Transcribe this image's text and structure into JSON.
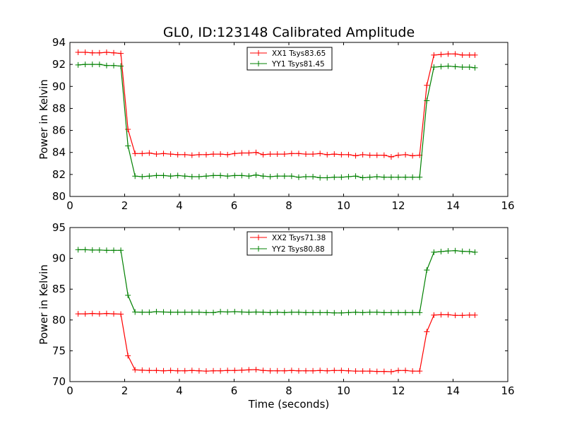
{
  "title": "GL0, ID:123148 Calibrated Amplitude",
  "xlabel": "Time (seconds)",
  "chart_data": [
    {
      "type": "line",
      "ylabel": "Power in Kelvin",
      "xlim": [
        0,
        16
      ],
      "ylim": [
        80,
        94
      ],
      "xticks": [
        "0",
        "2",
        "4",
        "6",
        "8",
        "10",
        "12",
        "14",
        "16"
      ],
      "yticks": [
        "80",
        "82",
        "84",
        "86",
        "88",
        "90",
        "92",
        "94"
      ],
      "legend_position": "top-center",
      "x": [
        0.3,
        0.56,
        0.82,
        1.08,
        1.34,
        1.6,
        1.86,
        2.12,
        2.38,
        2.64,
        2.9,
        3.16,
        3.42,
        3.68,
        3.94,
        4.2,
        4.46,
        4.72,
        4.98,
        5.24,
        5.5,
        5.76,
        6.02,
        6.28,
        6.54,
        6.8,
        7.06,
        7.32,
        7.58,
        7.84,
        8.1,
        8.36,
        8.62,
        8.88,
        9.14,
        9.4,
        9.66,
        9.92,
        10.18,
        10.44,
        10.7,
        10.96,
        11.22,
        11.48,
        11.74,
        12.0,
        12.26,
        12.52,
        12.78,
        13.04,
        13.3,
        13.56,
        13.82,
        14.08,
        14.34,
        14.6,
        14.8
      ],
      "series": [
        {
          "name": "XX1 Tsys83.65",
          "color": "#ff0000",
          "values": [
            93.1,
            93.1,
            93.05,
            93.05,
            93.1,
            93.05,
            93.0,
            86.1,
            83.9,
            83.9,
            83.95,
            83.85,
            83.9,
            83.85,
            83.8,
            83.8,
            83.75,
            83.8,
            83.8,
            83.85,
            83.85,
            83.8,
            83.9,
            83.95,
            83.95,
            84.0,
            83.8,
            83.85,
            83.85,
            83.85,
            83.9,
            83.9,
            83.85,
            83.85,
            83.9,
            83.8,
            83.85,
            83.8,
            83.8,
            83.7,
            83.8,
            83.75,
            83.75,
            83.75,
            83.6,
            83.75,
            83.8,
            83.7,
            83.75,
            90.1,
            92.85,
            92.9,
            92.95,
            92.95,
            92.85,
            92.85,
            92.85
          ]
        },
        {
          "name": "YY1 Tsys81.45",
          "color": "#008000",
          "values": [
            91.95,
            92.0,
            92.0,
            92.0,
            91.9,
            91.9,
            91.85,
            84.6,
            81.85,
            81.8,
            81.85,
            81.9,
            81.9,
            81.85,
            81.9,
            81.85,
            81.8,
            81.8,
            81.85,
            81.9,
            81.9,
            81.85,
            81.9,
            81.9,
            81.85,
            81.95,
            81.85,
            81.8,
            81.85,
            81.85,
            81.85,
            81.75,
            81.8,
            81.8,
            81.7,
            81.7,
            81.75,
            81.75,
            81.8,
            81.85,
            81.7,
            81.75,
            81.8,
            81.75,
            81.75,
            81.75,
            81.75,
            81.75,
            81.75,
            88.7,
            91.75,
            91.8,
            91.85,
            91.8,
            91.75,
            91.75,
            91.7
          ]
        }
      ]
    },
    {
      "type": "line",
      "ylabel": "Power in Kelvin",
      "xlabel": "Time (seconds)",
      "xlim": [
        0,
        16
      ],
      "ylim": [
        70,
        95
      ],
      "xticks": [
        "0",
        "2",
        "4",
        "6",
        "8",
        "10",
        "12",
        "14",
        "16"
      ],
      "yticks": [
        "70",
        "75",
        "80",
        "85",
        "90",
        "95"
      ],
      "legend_position": "top-center",
      "x": [
        0.3,
        0.56,
        0.82,
        1.08,
        1.34,
        1.6,
        1.86,
        2.12,
        2.38,
        2.64,
        2.9,
        3.16,
        3.42,
        3.68,
        3.94,
        4.2,
        4.46,
        4.72,
        4.98,
        5.24,
        5.5,
        5.76,
        6.02,
        6.28,
        6.54,
        6.8,
        7.06,
        7.32,
        7.58,
        7.84,
        8.1,
        8.36,
        8.62,
        8.88,
        9.14,
        9.4,
        9.66,
        9.92,
        10.18,
        10.44,
        10.7,
        10.96,
        11.22,
        11.48,
        11.74,
        12.0,
        12.26,
        12.52,
        12.78,
        13.04,
        13.3,
        13.56,
        13.82,
        14.08,
        14.34,
        14.6,
        14.8
      ],
      "series": [
        {
          "name": "XX2 Tsys71.38",
          "color": "#ff0000",
          "values": [
            81.0,
            81.0,
            81.05,
            81.0,
            81.05,
            81.0,
            80.95,
            74.2,
            71.9,
            71.85,
            71.8,
            71.8,
            71.75,
            71.8,
            71.75,
            71.75,
            71.8,
            71.75,
            71.7,
            71.75,
            71.75,
            71.8,
            71.8,
            71.85,
            71.9,
            71.95,
            71.8,
            71.75,
            71.75,
            71.75,
            71.8,
            71.75,
            71.75,
            71.75,
            71.8,
            71.75,
            71.8,
            71.8,
            71.75,
            71.7,
            71.7,
            71.7,
            71.65,
            71.65,
            71.6,
            71.8,
            71.8,
            71.7,
            71.7,
            78.1,
            80.8,
            80.85,
            80.85,
            80.75,
            80.75,
            80.8,
            80.8
          ]
        },
        {
          "name": "YY2 Tsys80.88",
          "color": "#008000",
          "values": [
            91.4,
            91.4,
            91.35,
            91.35,
            91.3,
            91.3,
            91.3,
            84.0,
            81.3,
            81.25,
            81.25,
            81.35,
            81.3,
            81.25,
            81.25,
            81.25,
            81.25,
            81.25,
            81.2,
            81.2,
            81.35,
            81.3,
            81.35,
            81.3,
            81.25,
            81.3,
            81.25,
            81.2,
            81.25,
            81.2,
            81.25,
            81.25,
            81.2,
            81.2,
            81.2,
            81.2,
            81.15,
            81.15,
            81.2,
            81.25,
            81.2,
            81.25,
            81.25,
            81.2,
            81.2,
            81.2,
            81.2,
            81.2,
            81.2,
            88.1,
            91.0,
            91.1,
            91.2,
            91.25,
            91.15,
            91.1,
            91.0
          ]
        }
      ]
    }
  ]
}
